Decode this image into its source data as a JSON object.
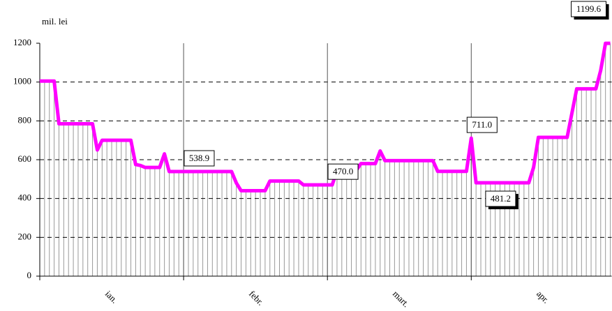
{
  "chart_data": {
    "type": "line",
    "y_unit_label": "mil. lei",
    "categories": [
      null,
      null,
      null,
      null,
      null,
      null,
      null,
      null,
      null,
      null,
      null,
      null,
      null,
      null,
      null,
      "ian.",
      null,
      null,
      null,
      null,
      null,
      null,
      null,
      null,
      null,
      null,
      null,
      null,
      null,
      null,
      null,
      null,
      null,
      null,
      null,
      null,
      null,
      null,
      null,
      null,
      null,
      null,
      null,
      null,
      null,
      "febr.",
      null,
      null,
      null,
      null,
      null,
      null,
      null,
      null,
      null,
      null,
      null,
      null,
      null,
      null,
      null,
      null,
      null,
      null,
      null,
      null,
      null,
      null,
      null,
      null,
      null,
      null,
      null,
      null,
      null,
      "mart.",
      null,
      null,
      null,
      null,
      null,
      null,
      null,
      null,
      null,
      null,
      null,
      null,
      null,
      null,
      null,
      null,
      null,
      null,
      null,
      null,
      null,
      null,
      null,
      null,
      null,
      null,
      null,
      null,
      null,
      "apr.",
      null,
      null,
      null,
      null,
      null,
      null,
      null,
      null,
      null,
      null,
      null,
      null,
      null,
      null
    ],
    "values": [
      1005,
      1005,
      1005,
      1005,
      785,
      785,
      785,
      785,
      785,
      785,
      785,
      785,
      650,
      700,
      700,
      700,
      700,
      700,
      700,
      700,
      575,
      570,
      560,
      560,
      560,
      560,
      630,
      538.9,
      538.9,
      538.9,
      538.9,
      538.9,
      538.9,
      538.9,
      538.9,
      538.9,
      538.9,
      538.9,
      538.9,
      538.9,
      538.9,
      480,
      440,
      440,
      440,
      440,
      440,
      440,
      490,
      490,
      490,
      490,
      490,
      490,
      490,
      470,
      470,
      470,
      470,
      470,
      470,
      470,
      545,
      545,
      545,
      545,
      545,
      580,
      580,
      580,
      580,
      645,
      595,
      595,
      595,
      595,
      595,
      595,
      595,
      595,
      595,
      595,
      595,
      540,
      540,
      540,
      540,
      540,
      540,
      540,
      711,
      481.2,
      481.2,
      481.2,
      481.2,
      481.2,
      481.2,
      481.2,
      481.2,
      481.2,
      481.2,
      481.2,
      481.2,
      560,
      715,
      715,
      715,
      715,
      715,
      715,
      715,
      840,
      965,
      965,
      965,
      965,
      965,
      1060,
      1199.6,
      1199.6
    ],
    "value_labels": [
      null,
      null,
      null,
      null,
      null,
      null,
      null,
      null,
      null,
      null,
      null,
      null,
      null,
      null,
      null,
      null,
      null,
      null,
      null,
      null,
      null,
      null,
      null,
      null,
      null,
      null,
      null,
      null,
      null,
      null,
      null,
      "538.9",
      null,
      null,
      null,
      null,
      null,
      null,
      null,
      null,
      null,
      null,
      null,
      null,
      null,
      null,
      null,
      null,
      null,
      null,
      null,
      null,
      null,
      null,
      null,
      null,
      null,
      null,
      null,
      null,
      null,
      "470.0",
      null,
      null,
      null,
      null,
      null,
      null,
      null,
      null,
      null,
      null,
      null,
      null,
      null,
      null,
      null,
      null,
      null,
      null,
      null,
      null,
      null,
      null,
      null,
      null,
      null,
      null,
      null,
      null,
      "711.0",
      null,
      null,
      "481.2",
      null,
      null,
      null,
      null,
      null,
      null,
      null,
      null,
      null,
      null,
      null,
      null,
      null,
      null,
      null,
      null,
      null,
      null,
      null,
      null,
      null,
      null,
      null,
      null,
      null,
      "1199.6"
    ],
    "color": "#ff00ff",
    "drop_line_color": "#999999",
    "ylim": [
      0,
      1200
    ],
    "yticks": [
      0,
      200,
      400,
      600,
      800,
      1000,
      1200
    ],
    "grid": true
  }
}
